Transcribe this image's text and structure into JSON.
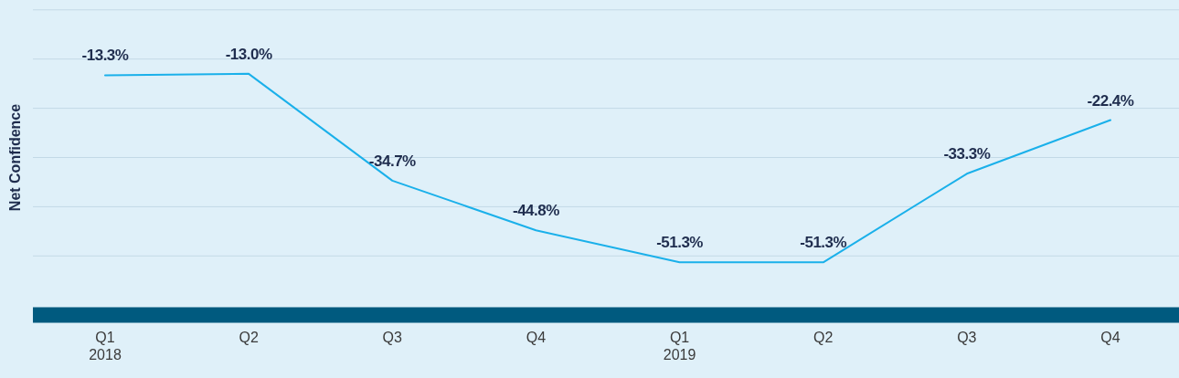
{
  "chart_data": {
    "type": "line",
    "ylabel": "Net Confidence",
    "categories": [
      "Q1\n2018",
      "Q2",
      "Q3",
      "Q4",
      "Q1\n2019",
      "Q2",
      "Q3",
      "Q4"
    ],
    "series": [
      {
        "color": "#1ab0ea",
        "values": [
          -13.3,
          -13.0,
          -34.7,
          -44.8,
          -51.3,
          -51.3,
          -33.3,
          -22.4
        ],
        "value_labels": [
          "-13.3%",
          "-13.0%",
          "-34.7%",
          "-44.8%",
          "-51.3%",
          "-51.3%",
          "-33.3%",
          "-22.4%"
        ]
      }
    ],
    "ylim": [
      -62,
      2
    ],
    "yticks": [
      {
        "value": 0,
        "label": null
      },
      {
        "value": -10,
        "label": null
      },
      {
        "value": -20,
        "label": null
      },
      {
        "value": -30,
        "label": null
      },
      {
        "value": -40,
        "label": null
      },
      {
        "value": -50,
        "label": null
      }
    ],
    "grid": "y",
    "tick_labels": "x",
    "marker": "none",
    "line_style": "solid"
  }
}
